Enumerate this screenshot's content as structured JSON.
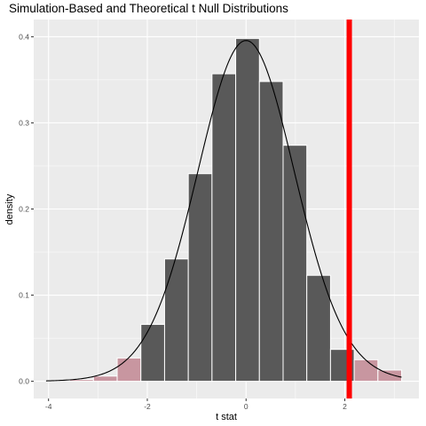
{
  "chart_data": {
    "type": "bar",
    "title": "Simulation-Based and Theoretical t Null Distributions",
    "xlabel": "t stat",
    "ylabel": "density",
    "xlim": [
      -4.3,
      3.5
    ],
    "ylim": [
      -0.02,
      0.42
    ],
    "x_ticks": [
      -4,
      -2,
      0,
      2
    ],
    "x_tick_labels": [
      "-4",
      "-2",
      "0",
      "2"
    ],
    "y_ticks": [
      0.0,
      0.1,
      0.2,
      0.3,
      0.4
    ],
    "y_tick_labels": [
      "0.0",
      "0.1",
      "0.2",
      "0.3",
      "0.4"
    ],
    "grid": true,
    "bins": [
      {
        "x0": -4.05,
        "x1": -3.57,
        "density": 0.001,
        "shaded": true
      },
      {
        "x0": -3.57,
        "x1": -3.09,
        "density": 0.002,
        "shaded": true
      },
      {
        "x0": -3.09,
        "x1": -2.61,
        "density": 0.006,
        "shaded": true
      },
      {
        "x0": -2.61,
        "x1": -2.13,
        "density": 0.027,
        "shaded": true
      },
      {
        "x0": -2.13,
        "x1": -1.65,
        "density": 0.066,
        "shaded": false
      },
      {
        "x0": -1.65,
        "x1": -1.17,
        "density": 0.142,
        "shaded": false
      },
      {
        "x0": -1.17,
        "x1": -0.69,
        "density": 0.241,
        "shaded": false
      },
      {
        "x0": -0.69,
        "x1": -0.21,
        "density": 0.357,
        "shaded": false
      },
      {
        "x0": -0.21,
        "x1": 0.27,
        "density": 0.398,
        "shaded": false
      },
      {
        "x0": 0.27,
        "x1": 0.75,
        "density": 0.348,
        "shaded": false
      },
      {
        "x0": 0.75,
        "x1": 1.23,
        "density": 0.274,
        "shaded": false
      },
      {
        "x0": 1.23,
        "x1": 1.71,
        "density": 0.123,
        "shaded": false
      },
      {
        "x0": 1.71,
        "x1": 2.19,
        "density": 0.037,
        "shaded": false
      },
      {
        "x0": 2.19,
        "x1": 2.67,
        "density": 0.025,
        "shaded": true
      },
      {
        "x0": 2.67,
        "x1": 3.15,
        "density": 0.013,
        "shaded": true
      }
    ],
    "theoretical_curve": {
      "distribution": "t",
      "df": 30,
      "x_range": [
        -4.05,
        3.15
      ]
    },
    "observed_stat": 2.09,
    "colors": {
      "panel_bg": "#ebebeb",
      "grid": "#ffffff",
      "bar": "#595959",
      "bar_shaded": "#c896a0",
      "bar_outline": "#ffffff",
      "curve": "#000000",
      "observed_line": "#ff0000",
      "axis_text": "#4d4d4d",
      "title_text": "#000000"
    }
  }
}
